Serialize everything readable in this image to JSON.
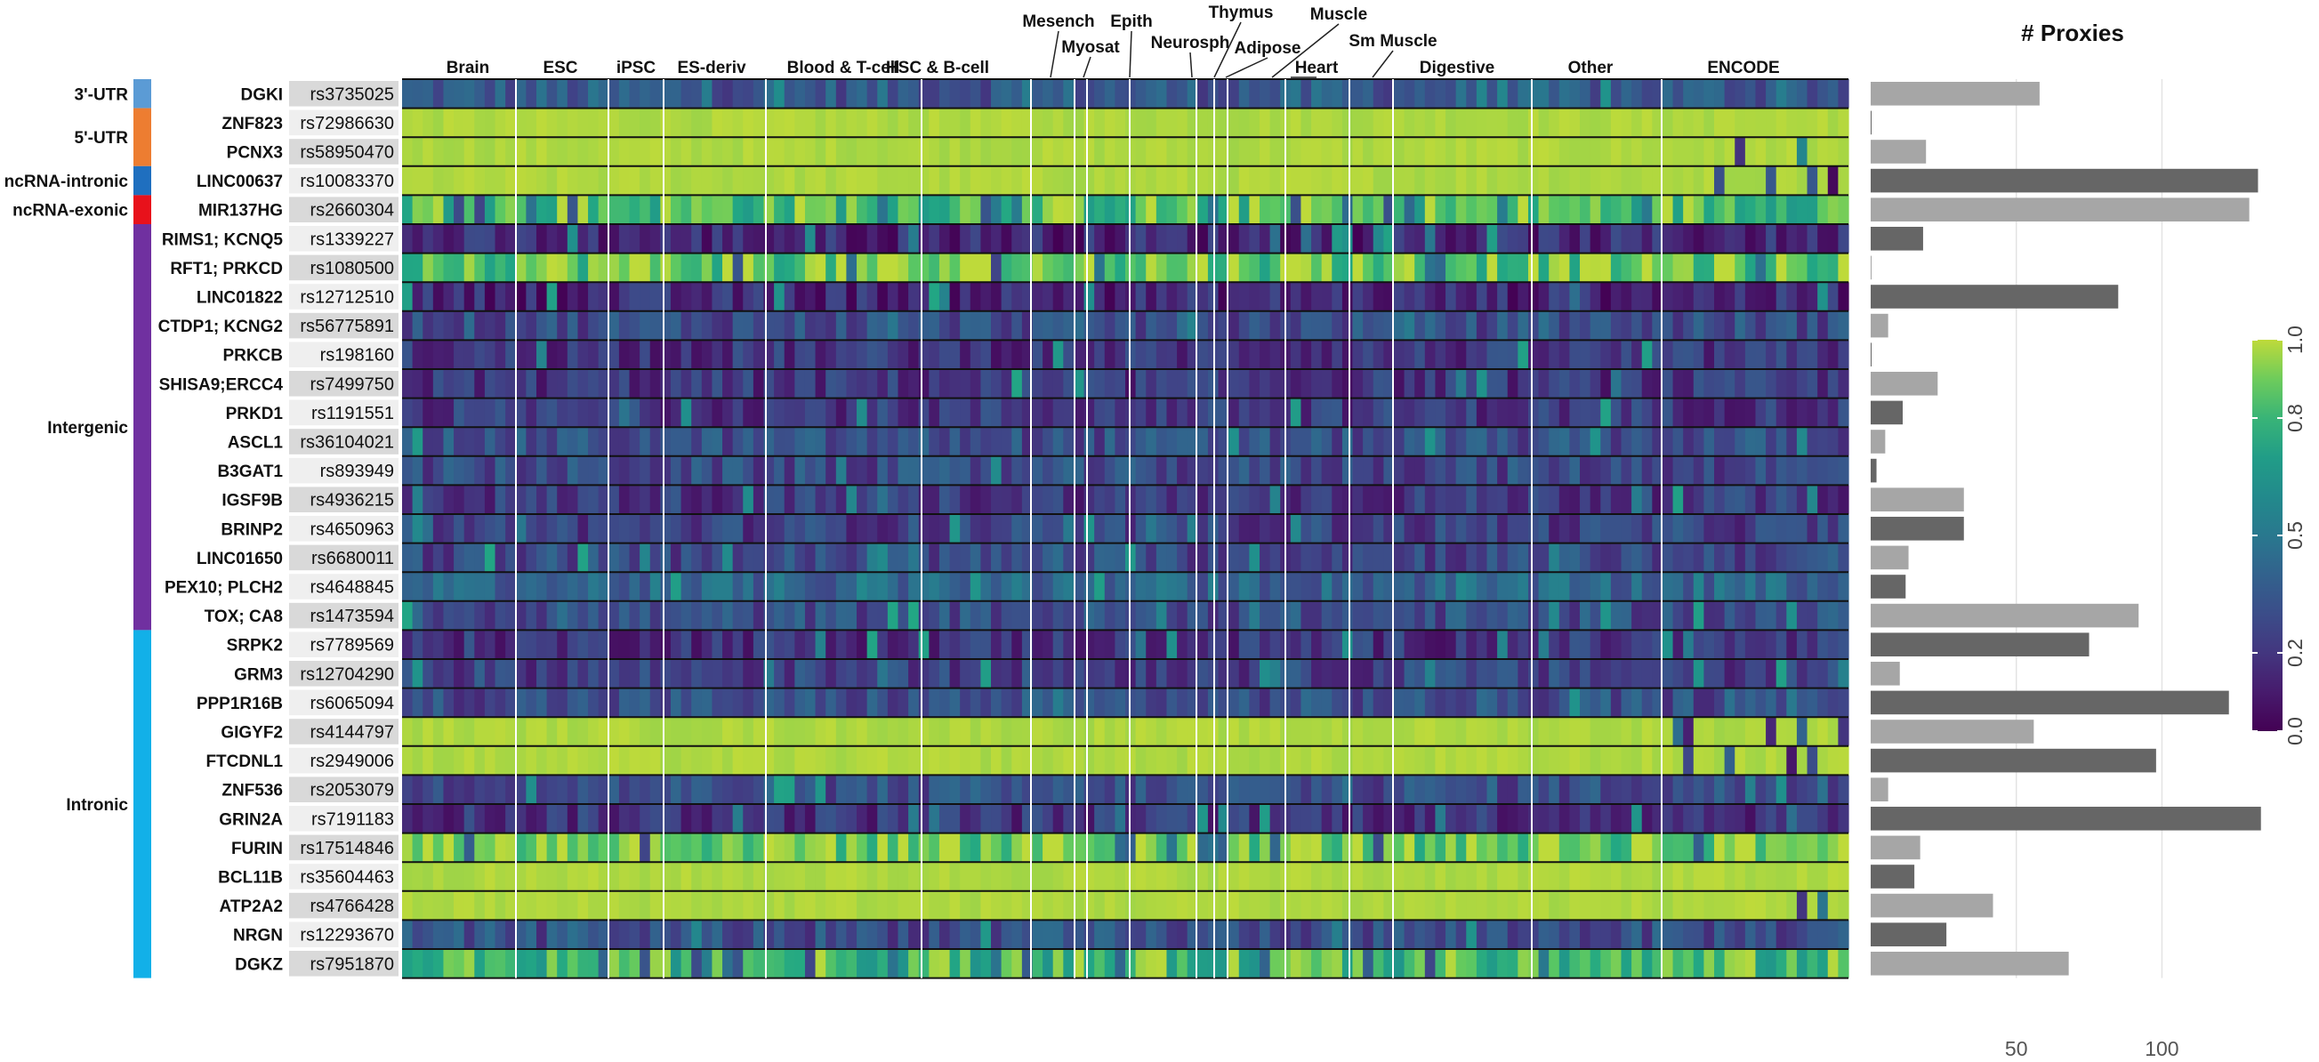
{
  "chart_data": [
    {
      "type": "heatmap",
      "title": "",
      "column_groups": [
        "Brain",
        "ESC",
        "iPSC",
        "ES-deriv",
        "Blood & T-cell",
        "HSC & B-cell",
        "Mesench",
        "Myosat",
        "Epith",
        "Neurosph",
        "Thymus",
        "Adipose",
        "Muscle",
        "Heart",
        "Sm Muscle",
        "Digestive",
        "Other",
        "ENCODE"
      ],
      "region_categories": [
        {
          "label": "3'-UTR",
          "color": "#5b9bd5",
          "rows": 1
        },
        {
          "label": "5'-UTR",
          "color": "#ed7d31",
          "rows": 2
        },
        {
          "label": "ncRNA-intronic",
          "color": "#1f6fbf",
          "rows": 1
        },
        {
          "label": "ncRNA-exonic",
          "color": "#e8111b",
          "rows": 1
        },
        {
          "label": "Intergenic",
          "color": "#7030a0",
          "rows": 14
        },
        {
          "label": "Intronic",
          "color": "#12b0e8",
          "rows": 12
        }
      ],
      "rows": [
        {
          "gene": "DGKI",
          "snp": "rs3735025",
          "base": 0.35
        },
        {
          "gene": "ZNF823",
          "snp": "rs72986630",
          "base": 0.99
        },
        {
          "gene": "PCNX3",
          "snp": "rs58950470",
          "base": 0.99
        },
        {
          "gene": "LINC00637",
          "snp": "rs10083370",
          "base": 0.99
        },
        {
          "gene": "MIR137HG",
          "snp": "rs2660304",
          "base": 0.85
        },
        {
          "gene": "RIMS1; KCNQ5",
          "snp": "rs1339227",
          "base": 0.15
        },
        {
          "gene": "RFT1; PRKCD",
          "snp": "rs1080500",
          "base": 0.9
        },
        {
          "gene": "LINC01822",
          "snp": "rs12712510",
          "base": 0.15
        },
        {
          "gene": "CTDP1; KCNG2",
          "snp": "rs56775891",
          "base": 0.3
        },
        {
          "gene": "PRKCB",
          "snp": "rs198160",
          "base": 0.2
        },
        {
          "gene": "SHISA9;ERCC4",
          "snp": "rs7499750",
          "base": 0.2
        },
        {
          "gene": "PRKD1",
          "snp": "rs1191551",
          "base": 0.22
        },
        {
          "gene": "ASCL1",
          "snp": "rs36104021",
          "base": 0.3
        },
        {
          "gene": "B3GAT1",
          "snp": "rs893949",
          "base": 0.28
        },
        {
          "gene": "IGSF9B",
          "snp": "rs4936215",
          "base": 0.22
        },
        {
          "gene": "BRINP2",
          "snp": "rs4650963",
          "base": 0.25
        },
        {
          "gene": "LINC01650",
          "snp": "rs6680011",
          "base": 0.28
        },
        {
          "gene": "PEX10; PLCH2",
          "snp": "rs4648845",
          "base": 0.4
        },
        {
          "gene": "TOX; CA8",
          "snp": "rs1473594",
          "base": 0.3
        },
        {
          "gene": "SRPK2",
          "snp": "rs7789569",
          "base": 0.2
        },
        {
          "gene": "GRM3",
          "snp": "rs12704290",
          "base": 0.25
        },
        {
          "gene": "PPP1R16B",
          "snp": "rs6065094",
          "base": 0.3
        },
        {
          "gene": "GIGYF2",
          "snp": "rs4144797",
          "base": 0.99
        },
        {
          "gene": "FTCDNL1",
          "snp": "rs2949006",
          "base": 0.99
        },
        {
          "gene": "ZNF536",
          "snp": "rs2053079",
          "base": 0.3
        },
        {
          "gene": "GRIN2A",
          "snp": "rs7191183",
          "base": 0.2
        },
        {
          "gene": "FURIN",
          "snp": "rs17514846",
          "base": 0.92
        },
        {
          "gene": "BCL11B",
          "snp": "rs35604463",
          "base": 0.99
        },
        {
          "gene": "ATP2A2",
          "snp": "rs4766428",
          "base": 0.99
        },
        {
          "gene": "NRGN",
          "snp": "rs12293670",
          "base": 0.3
        },
        {
          "gene": "DGKZ",
          "snp": "rs7951870",
          "base": 0.82
        }
      ],
      "colorbar": {
        "title": "",
        "ticks": [
          "0.0",
          "0.2",
          "0.5",
          "0.8",
          "1.0"
        ],
        "tick_values": [
          0,
          0.2,
          0.5,
          0.8,
          1.0
        ],
        "range": [
          0,
          1
        ]
      }
    },
    {
      "type": "bar",
      "orientation": "horizontal",
      "title": "# Proxies",
      "xlim": [
        0,
        135
      ],
      "x_ticks": [
        50,
        100
      ],
      "categories": [
        "rs3735025",
        "rs72986630",
        "rs58950470",
        "rs10083370",
        "rs2660304",
        "rs1339227",
        "rs1080500",
        "rs12712510",
        "rs56775891",
        "rs198160",
        "rs7499750",
        "rs1191551",
        "rs36104021",
        "rs893949",
        "rs4936215",
        "rs4650963",
        "rs6680011",
        "rs4648845",
        "rs1473594",
        "rs7789569",
        "rs12704290",
        "rs6065094",
        "rs4144797",
        "rs2949006",
        "rs2053079",
        "rs7191183",
        "rs17514846",
        "rs35604463",
        "rs4766428",
        "rs12293670",
        "rs7951870"
      ],
      "values": [
        58,
        0,
        19,
        133,
        130,
        18,
        0,
        85,
        6,
        0,
        23,
        11,
        5,
        2,
        32,
        32,
        13,
        12,
        92,
        75,
        10,
        123,
        56,
        98,
        6,
        134,
        17,
        15,
        42,
        26,
        68
      ]
    }
  ]
}
